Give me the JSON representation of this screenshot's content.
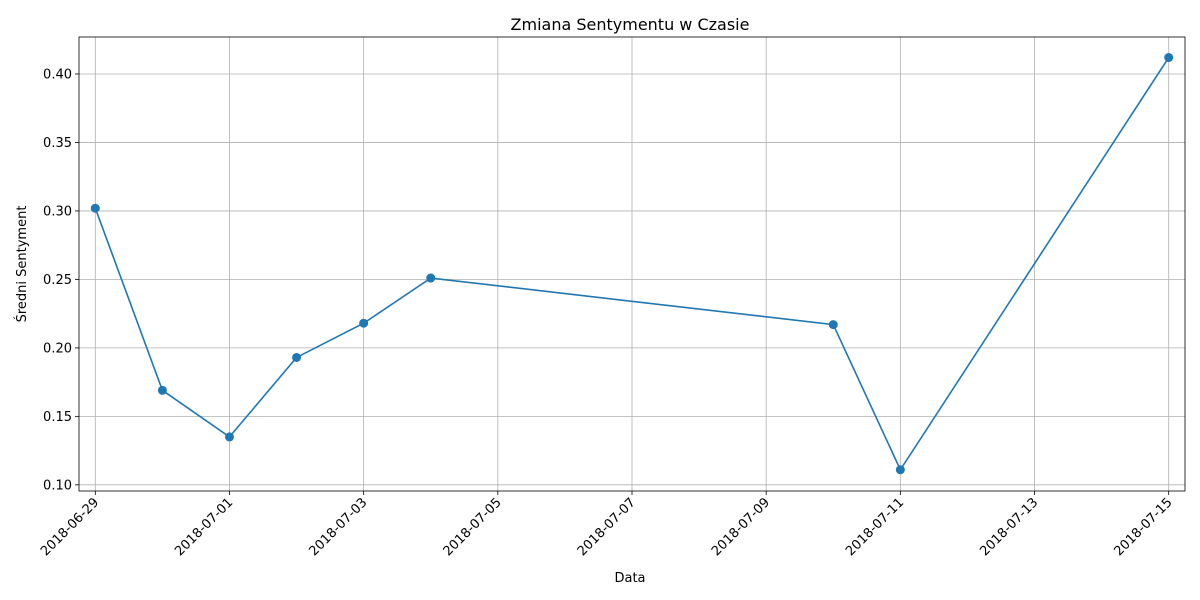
{
  "chart_data": {
    "type": "line",
    "title": "Zmiana Sentymentu w Czasie",
    "xlabel": "Data",
    "ylabel": "Średni Sentyment",
    "x_axis_type": "date",
    "xlim": [
      "2018-06-28T18:10",
      "2018-07-15T05:50"
    ],
    "ylim": [
      0.0955,
      0.427
    ],
    "x_ticks": [
      "2018-06-29",
      "2018-07-01",
      "2018-07-03",
      "2018-07-05",
      "2018-07-07",
      "2018-07-09",
      "2018-07-11",
      "2018-07-13",
      "2018-07-15"
    ],
    "y_ticks": [
      0.1,
      0.15,
      0.2,
      0.25,
      0.3,
      0.35,
      0.4
    ],
    "y_tick_labels": [
      "0.10",
      "0.15",
      "0.20",
      "0.25",
      "0.30",
      "0.35",
      "0.40"
    ],
    "grid": true,
    "series": [
      {
        "color": "#1f77b4",
        "marker": "circle",
        "x": [
          "2018-06-29",
          "2018-06-30",
          "2018-07-01",
          "2018-07-02",
          "2018-07-03",
          "2018-07-04",
          "2018-07-10",
          "2018-07-11",
          "2018-07-15"
        ],
        "values": [
          0.302,
          0.169,
          0.135,
          0.193,
          0.218,
          0.251,
          0.217,
          0.111,
          0.412
        ]
      }
    ]
  }
}
